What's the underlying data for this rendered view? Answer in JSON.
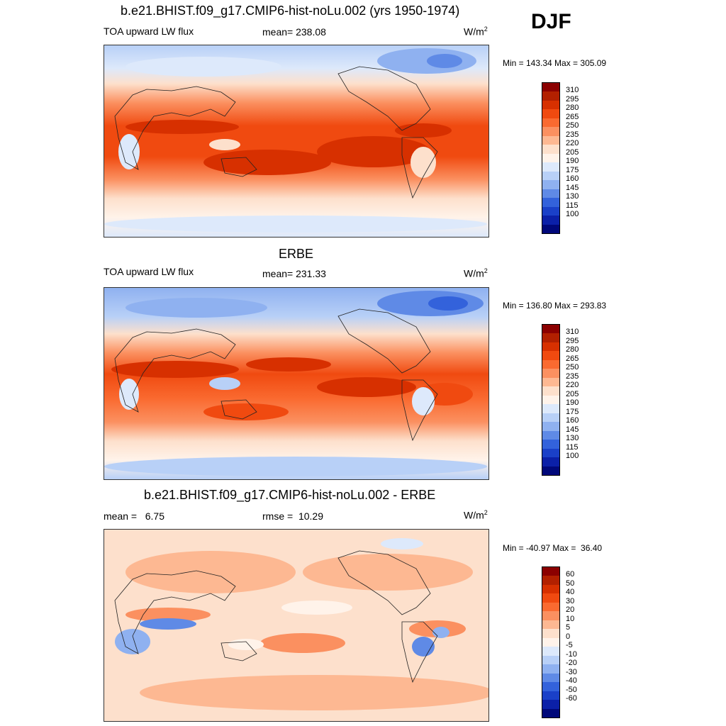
{
  "season": "DJF",
  "units_base": "W/m",
  "units_exp": "2",
  "panels": [
    {
      "title": "b.e21.BHIST.f09_g17.CMIP6-hist-noLu.002 (yrs 1950-1974)",
      "left_label": "TOA upward LW flux",
      "center_label": "mean= 238.08",
      "minmax": "Min = 143.34 Max = 305.09"
    },
    {
      "title": "ERBE",
      "left_label": "TOA upward LW flux",
      "center_label": "mean= 231.33",
      "minmax": "Min = 136.80 Max = 293.83"
    },
    {
      "title": "b.e21.BHIST.f09_g17.CMIP6-hist-noLu.002 - ERBE",
      "left_label": "mean =   6.75",
      "center_label": "rmse =  10.29",
      "minmax": "Min = -40.97 Max =  36.40"
    }
  ],
  "chart_data": [
    {
      "type": "heatmap",
      "title": "b.e21.BHIST.f09_g17.CMIP6-hist-noLu.002 (yrs 1950-1974)",
      "variable": "TOA upward LW flux",
      "units": "W/m2",
      "mean": 238.08,
      "min": 143.34,
      "max": 305.09,
      "colorbar_levels": [
        310,
        295,
        280,
        265,
        250,
        235,
        220,
        205,
        190,
        175,
        160,
        145,
        130,
        115,
        100
      ]
    },
    {
      "type": "heatmap",
      "title": "ERBE",
      "variable": "TOA upward LW flux",
      "units": "W/m2",
      "mean": 231.33,
      "min": 136.8,
      "max": 293.83,
      "colorbar_levels": [
        310,
        295,
        280,
        265,
        250,
        235,
        220,
        205,
        190,
        175,
        160,
        145,
        130,
        115,
        100
      ]
    },
    {
      "type": "heatmap",
      "title": "b.e21.BHIST.f09_g17.CMIP6-hist-noLu.002 - ERBE",
      "units": "W/m2",
      "mean": 6.75,
      "rmse": 10.29,
      "min": -40.97,
      "max": 36.4,
      "colorbar_levels": [
        60,
        50,
        40,
        30,
        20,
        10,
        5,
        0,
        -5,
        -10,
        -20,
        -30,
        -40,
        -50,
        -60
      ]
    }
  ],
  "colors": {
    "scale": [
      "#8b0000",
      "#b22000",
      "#d73000",
      "#f04a10",
      "#fa6a30",
      "#fb9060",
      "#fdb892",
      "#fde0cc",
      "#fff3ea",
      "#dde9fb",
      "#b8d0f7",
      "#8fb1f0",
      "#5f8ae6",
      "#3362db",
      "#1a40c8",
      "#0b20a8",
      "#00087a"
    ]
  }
}
